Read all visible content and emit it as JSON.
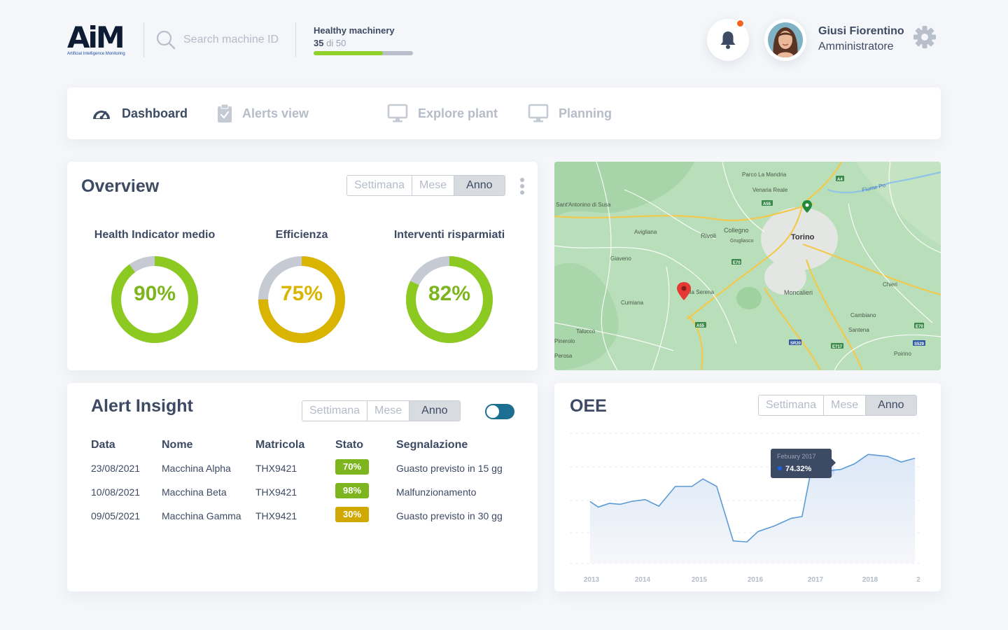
{
  "app": {
    "logo_text": "AiM",
    "logo_subtitle": "Artificial Intelligence Monitoring"
  },
  "search": {
    "placeholder": "Search machine ID"
  },
  "health": {
    "title": "Healthy machinery",
    "count": "35",
    "of_label": "di",
    "total": "50",
    "fraction": 0.7
  },
  "user": {
    "name": "Giusi Fiorentino",
    "role": "Amministratore",
    "has_notification": true
  },
  "nav": {
    "items": [
      {
        "label": "Dashboard",
        "icon": "speedometer-icon",
        "active": true
      },
      {
        "label": "Alerts view",
        "icon": "clipboard-check-icon",
        "active": false
      },
      {
        "label": "Explore plant",
        "icon": "monitor-icon",
        "active": false
      },
      {
        "label": "Planning",
        "icon": "monitor-icon",
        "active": false
      }
    ]
  },
  "periods": [
    "Settimana",
    "Mese",
    "Anno"
  ],
  "selected_period": "Anno",
  "overview": {
    "title": "Overview",
    "gauges": [
      {
        "label": "Health Indicator medio",
        "value": "90%",
        "fraction": 0.9,
        "color": "#8cc921"
      },
      {
        "label": "Efficienza",
        "value": "75%",
        "fraction": 0.75,
        "color": "#d9b400"
      },
      {
        "label": "Interventi risparmiati",
        "value": "82%",
        "fraction": 0.82,
        "color": "#8cc921"
      }
    ]
  },
  "map": {
    "labels": [
      "Parco La Mandria",
      "Venaria Reale",
      "Fiume Po",
      "Sant'Antonino di Susa",
      "Avigliana",
      "Rivoli",
      "Collegno",
      "Grugliasco",
      "Torino",
      "Giaveno",
      "Villa Serena",
      "Moncalieri",
      "Chieri",
      "Cumiana",
      "Cambiano",
      "Santena",
      "Talucco",
      "Poirino",
      "Pinerolo",
      "Perosa"
    ],
    "road_codes": [
      "A55",
      "A4",
      "E70",
      "A55",
      "E70",
      "S529",
      "E717",
      "SR20"
    ]
  },
  "alert_insight": {
    "title": "Alert Insight",
    "toggle_on": true,
    "columns": [
      "Data",
      "Nome",
      "Matricola",
      "Stato",
      "Segnalazione"
    ],
    "rows": [
      {
        "date": "23/08/2021",
        "name": "Macchina Alpha",
        "serial": "THX9421",
        "status": "70%",
        "status_color": "#7db51e",
        "signal": "Guasto previsto in 15 gg"
      },
      {
        "date": "10/08/2021",
        "name": "Macchina Beta",
        "serial": "THX9421",
        "status": "98%",
        "status_color": "#7db51e",
        "signal": "Malfunzionamento"
      },
      {
        "date": "09/05/2021",
        "name": "Macchina Gamma",
        "serial": "THX9421",
        "status": "30%",
        "status_color": "#cfa800",
        "signal": "Guasto previsto in 30 gg"
      }
    ]
  },
  "chart_data": {
    "type": "area",
    "title": "OEE",
    "x_ticks": [
      "2013",
      "2014",
      "2015",
      "2016",
      "2017",
      "2018",
      "2"
    ],
    "x": [
      2013.0,
      2013.15,
      2013.35,
      2013.55,
      2013.75,
      2014.0,
      2014.25,
      2014.55,
      2014.85,
      2015.05,
      2015.3,
      2015.6,
      2015.85,
      2016.05,
      2016.35,
      2016.65,
      2016.85,
      2017.05,
      2017.3,
      2017.55,
      2017.8,
      2018.05,
      2018.4,
      2018.65,
      2018.9
    ],
    "values": [
      58,
      55,
      57,
      56.5,
      58,
      59,
      55.5,
      66,
      66,
      70,
      66,
      37,
      36.5,
      42,
      45,
      49,
      50,
      80,
      74.32,
      75,
      78,
      83,
      82,
      79,
      81
    ],
    "highlight": {
      "label": "Febuary 2017",
      "value": "74.32%"
    },
    "color": "#5b9bd5"
  }
}
